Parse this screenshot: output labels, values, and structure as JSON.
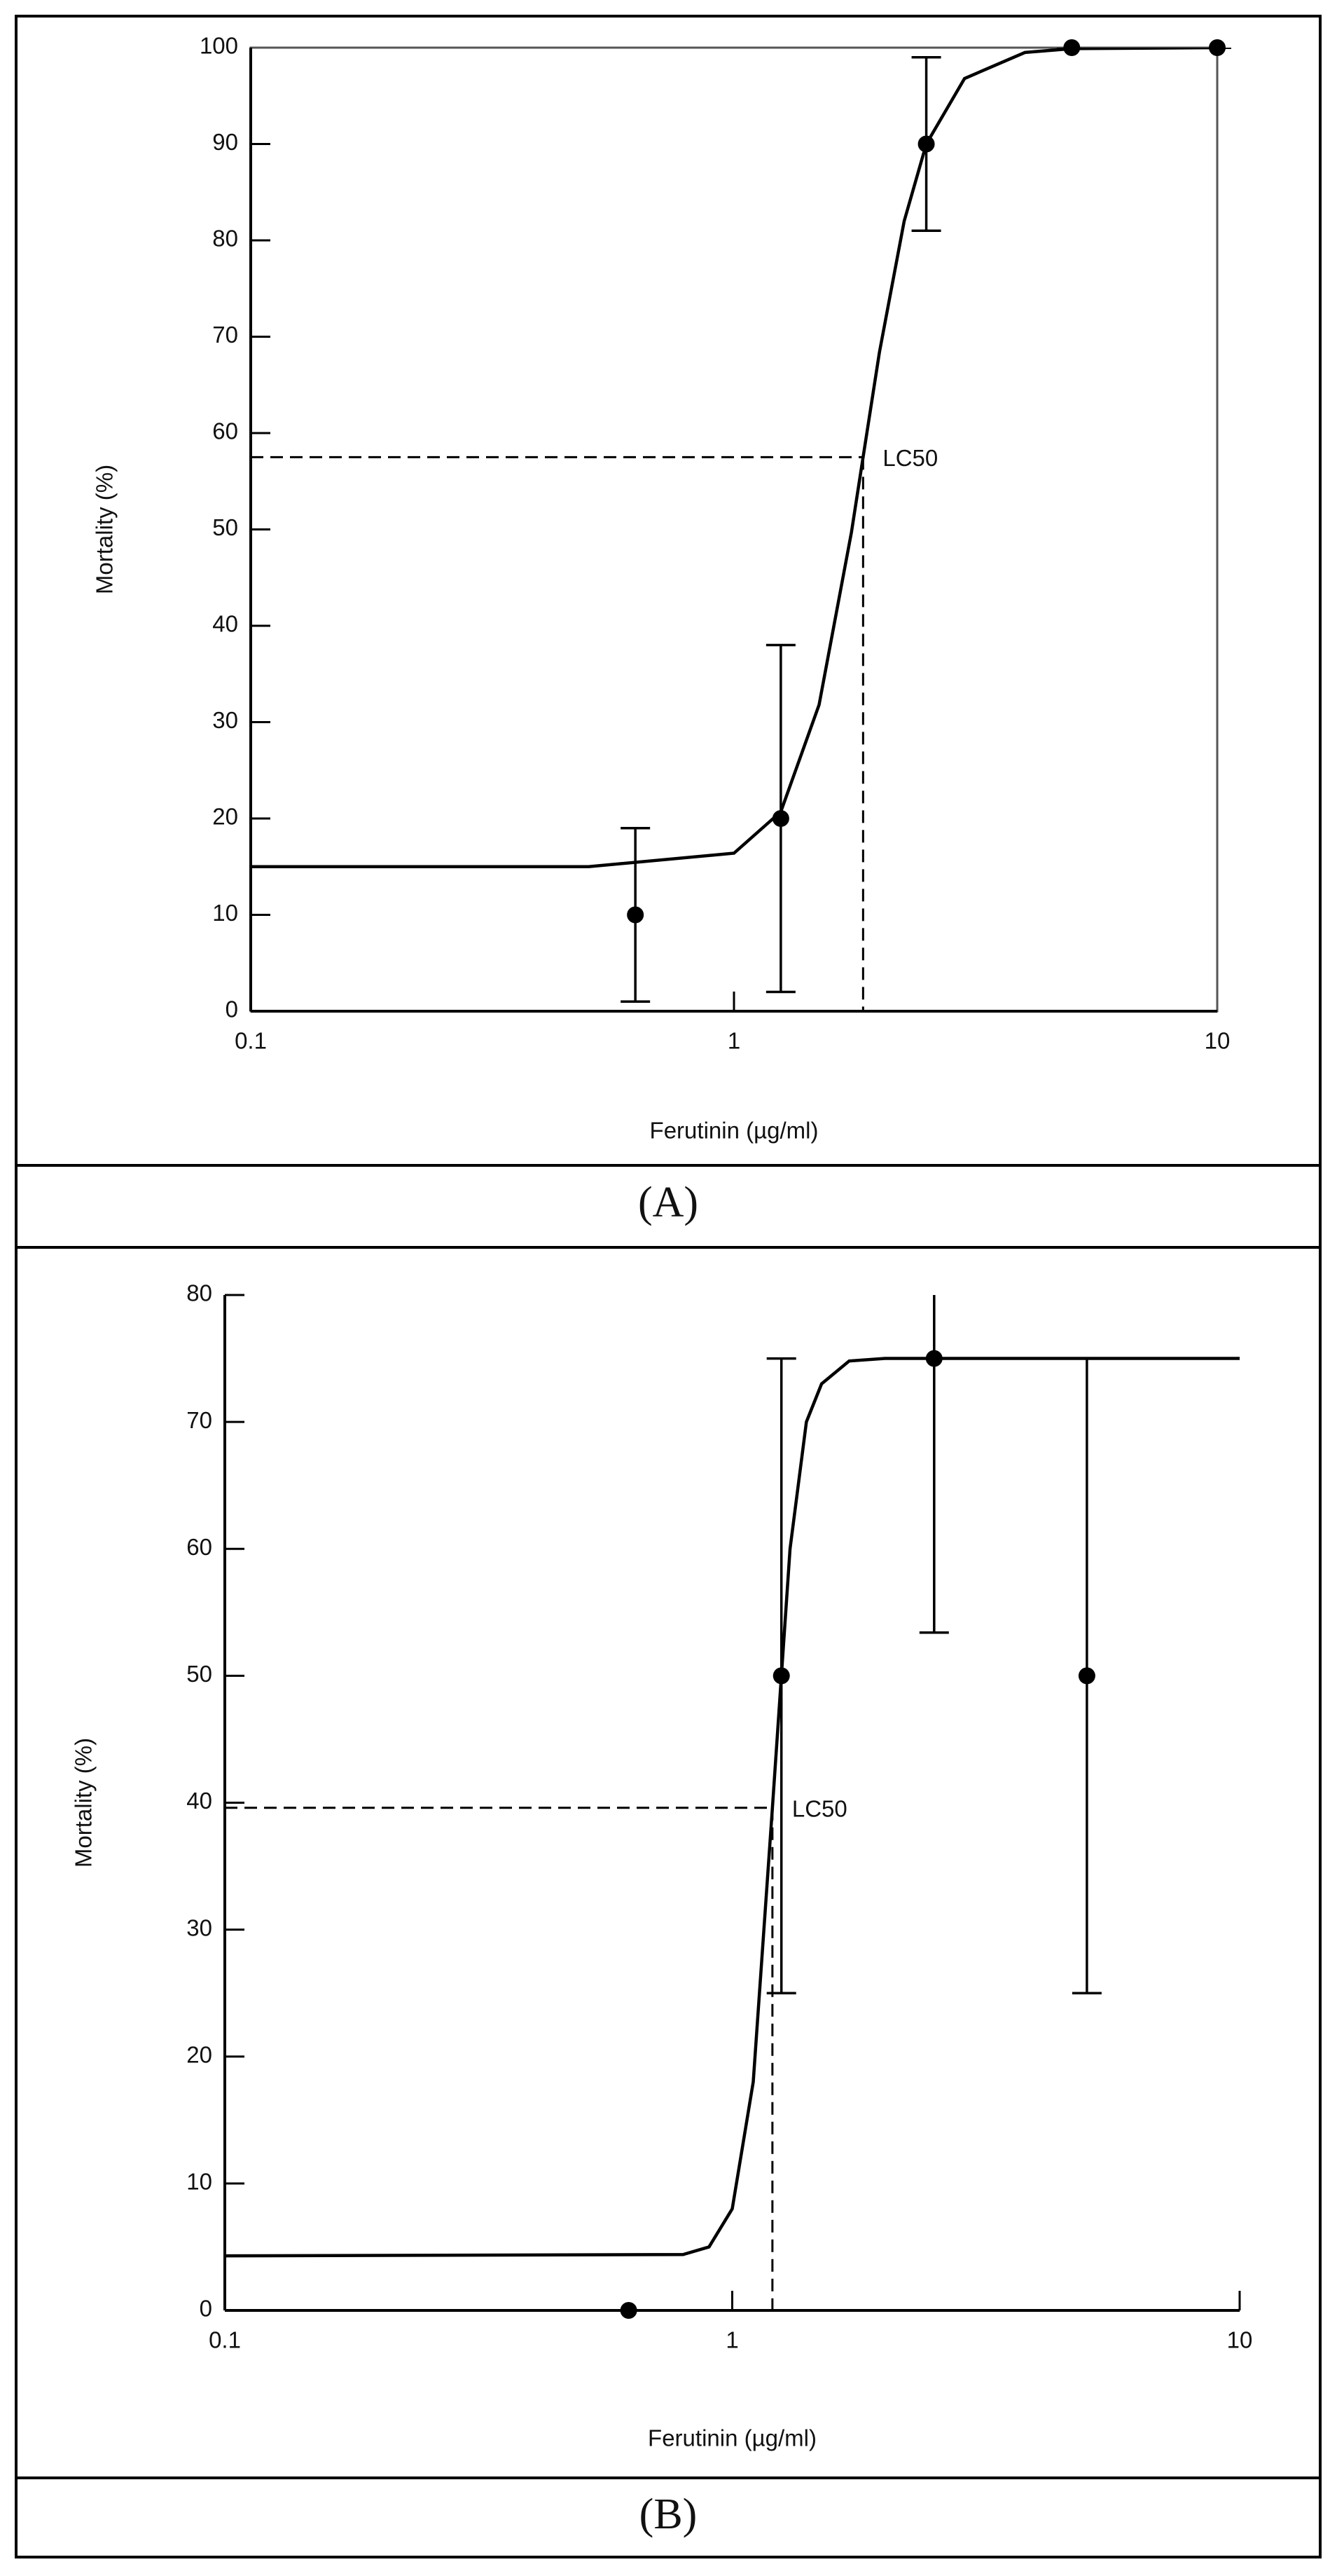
{
  "chart_data": [
    {
      "type": "scatter",
      "caption": "(A)",
      "xlabel": "Ferutinin (µg/ml)",
      "ylabel": "Mortality (%)",
      "x": [
        0.625,
        1.25,
        2.5,
        5,
        10
      ],
      "values": [
        10,
        20,
        90,
        100,
        100
      ],
      "errors": [
        9,
        18,
        9,
        0,
        0
      ],
      "curve_x": [
        0.1,
        0.5,
        1,
        1.25,
        1.5,
        1.75,
        1.85,
        2,
        2.25,
        2.5,
        3,
        4,
        5,
        10
      ],
      "curve_values": [
        15,
        15,
        16.4,
        20.7,
        31.8,
        49.7,
        57.5,
        68.4,
        82,
        90,
        96.8,
        99.5,
        99.9,
        100
      ],
      "lc50": {
        "label": "LC50",
        "x": 1.85,
        "y": 57.5
      },
      "xlim": [
        0.1,
        10
      ],
      "xticks": [
        0.1,
        1,
        10
      ],
      "log_x": true,
      "ylim": [
        0,
        100
      ],
      "yticks": [
        0,
        10,
        20,
        30,
        40,
        50,
        60,
        70,
        80,
        90,
        100
      ],
      "box": true,
      "color": "#000000"
    },
    {
      "type": "scatter",
      "caption": "(B)",
      "xlabel": "Ferutinin (µg/ml)",
      "ylabel": "Mortality (%)",
      "x": [
        0.625,
        1.25,
        2.5,
        5
      ],
      "values": [
        0,
        50,
        75,
        50
      ],
      "errors": [
        0,
        25,
        21.6,
        25
      ],
      "curve_x": [
        0.1,
        0.8,
        0.9,
        1,
        1.1,
        1.2,
        1.25,
        1.3,
        1.4,
        1.5,
        1.7,
        2,
        10
      ],
      "curve_values": [
        4.3,
        4.4,
        5,
        8,
        18,
        39.6,
        50,
        60,
        70,
        73,
        74.8,
        75,
        75
      ],
      "lc50": {
        "label": "LC50",
        "x": 1.2,
        "y": 39.6
      },
      "xlim": [
        0.1,
        10
      ],
      "xticks": [
        0.1,
        1,
        10
      ],
      "log_x": true,
      "ylim": [
        0,
        80
      ],
      "yticks": [
        0,
        10,
        20,
        30,
        40,
        50,
        60,
        70,
        80
      ],
      "box": false,
      "color": "#000000"
    }
  ]
}
